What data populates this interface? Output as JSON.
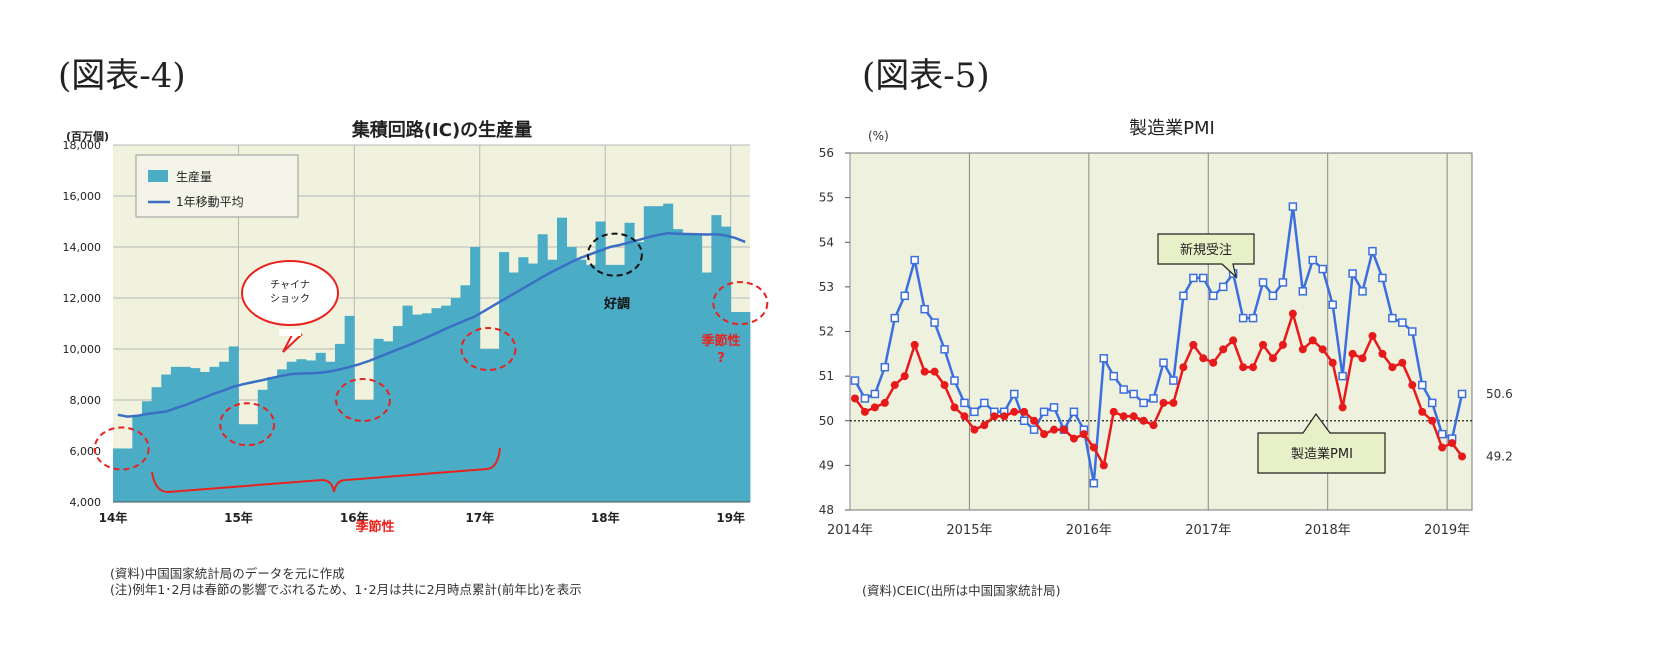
{
  "figure4": {
    "label": "(図表-4)",
    "source_note": "(資料)中国国家統計局のデータを元に作成",
    "caution_note": "(注)例年1･2月は春節の影響でぶれるため、1･2月は共に2月時点累計(前年比)を表示",
    "annotations": {
      "china_shock": [
        "チャイナ",
        "ショック"
      ],
      "seasonality": "季節性",
      "strong": "好調",
      "seasonality_q": [
        "季節性",
        "?"
      ]
    },
    "colors": {
      "bar": "#4bacc6",
      "line": "#3b6fc4",
      "plot_bg": "#f0f2dd",
      "annot_red": "#e8231f"
    }
  },
  "figure5": {
    "label": "(図表-5)",
    "source_note": "(資料)CEIC(出所は中国国家統計局)",
    "colors": {
      "new_orders": "#3b6fe0",
      "pmi": "#e8191a",
      "plot_bg": "#eef1dd",
      "callout_bg": "#e8f0c8"
    }
  },
  "chart_data": [
    {
      "type": "bar",
      "title": "集積回路(IC)の生産量",
      "ylabel": "(百万個)",
      "ylim": [
        4000,
        18000
      ],
      "yticks": [
        "4,000",
        "6,000",
        "8,000",
        "10,000",
        "12,000",
        "14,000",
        "16,000",
        "18,000"
      ],
      "xticks": [
        "14年",
        "15年",
        "16年",
        "17年",
        "18年",
        "19年"
      ],
      "grid": true,
      "legend_position": "top-left",
      "series": [
        {
          "name": "生産量",
          "type": "bar",
          "values": [
            6100,
            6100,
            7400,
            7950,
            8500,
            9000,
            9300,
            9300,
            9250,
            9100,
            9300,
            9500,
            10100,
            7050,
            7050,
            8400,
            8900,
            9200,
            9500,
            9600,
            9550,
            9850,
            9500,
            10200,
            11300,
            8000,
            8000,
            10400,
            10300,
            10900,
            11700,
            11350,
            11400,
            11600,
            11700,
            12000,
            12500,
            14000,
            10000,
            10000,
            13800,
            13000,
            13600,
            13350,
            14500,
            13500,
            15150,
            14000,
            13500,
            13300,
            15000,
            13300,
            13300,
            14950,
            14200,
            15600,
            15600,
            15700,
            14700,
            14500,
            14500,
            13000,
            15250,
            14800,
            11450,
            11450
          ]
        },
        {
          "name": "1年移動平均",
          "type": "line",
          "values": [
            7420,
            7350,
            7380,
            7450,
            7500,
            7550,
            7680,
            7800,
            7950,
            8100,
            8250,
            8380,
            8520,
            8620,
            8700,
            8780,
            8870,
            8950,
            9020,
            9040,
            9050,
            9070,
            9120,
            9200,
            9300,
            9400,
            9530,
            9680,
            9830,
            9980,
            10130,
            10290,
            10450,
            10620,
            10800,
            10960,
            11120,
            11280,
            11500,
            11720,
            11940,
            12160,
            12380,
            12600,
            12820,
            13030,
            13220,
            13410,
            13580,
            13720,
            13860,
            14000,
            14080,
            14180,
            14280,
            14390,
            14480,
            14540,
            14520,
            14510,
            14500,
            14490,
            14500,
            14450,
            14350,
            14200
          ]
        }
      ]
    },
    {
      "type": "line",
      "title": "製造業PMI",
      "ylabel": "(%)",
      "ylim": [
        48,
        56
      ],
      "yticks": [
        "48",
        "49",
        "50",
        "51",
        "52",
        "53",
        "54",
        "55",
        "56"
      ],
      "xticks": [
        "2014年",
        "2015年",
        "2016年",
        "2017年",
        "2018年",
        "2019年"
      ],
      "grid": true,
      "reference_line": 50,
      "series": [
        {
          "name": "新規受注",
          "values": [
            50.9,
            50.5,
            50.6,
            51.2,
            52.3,
            52.8,
            53.6,
            52.5,
            52.2,
            51.6,
            50.9,
            50.4,
            50.2,
            50.4,
            50.2,
            50.2,
            50.6,
            50.0,
            49.8,
            50.2,
            50.3,
            49.8,
            50.2,
            49.8,
            48.6,
            51.4,
            51.0,
            50.7,
            50.6,
            50.4,
            50.5,
            51.3,
            50.9,
            52.8,
            53.2,
            53.2,
            52.8,
            53.0,
            53.3,
            52.3,
            52.3,
            53.1,
            52.8,
            53.1,
            54.8,
            52.9,
            53.6,
            53.4,
            52.6,
            51.0,
            53.3,
            52.9,
            53.8,
            53.2,
            52.3,
            52.2,
            52.0,
            50.8,
            50.4,
            49.7,
            49.6,
            50.6
          ],
          "end_label": "50.6"
        },
        {
          "name": "製造業PMI",
          "values": [
            50.5,
            50.2,
            50.3,
            50.4,
            50.8,
            51.0,
            51.7,
            51.1,
            51.1,
            50.8,
            50.3,
            50.1,
            49.8,
            49.9,
            50.1,
            50.1,
            50.2,
            50.2,
            50.0,
            49.7,
            49.8,
            49.8,
            49.6,
            49.7,
            49.4,
            49.0,
            50.2,
            50.1,
            50.1,
            50.0,
            49.9,
            50.4,
            50.4,
            51.2,
            51.7,
            51.4,
            51.3,
            51.6,
            51.8,
            51.2,
            51.2,
            51.7,
            51.4,
            51.7,
            52.4,
            51.6,
            51.8,
            51.6,
            51.3,
            50.3,
            51.5,
            51.4,
            51.9,
            51.5,
            51.2,
            51.3,
            50.8,
            50.2,
            50.0,
            49.4,
            49.5,
            49.2
          ],
          "end_label": "49.2"
        }
      ]
    }
  ]
}
